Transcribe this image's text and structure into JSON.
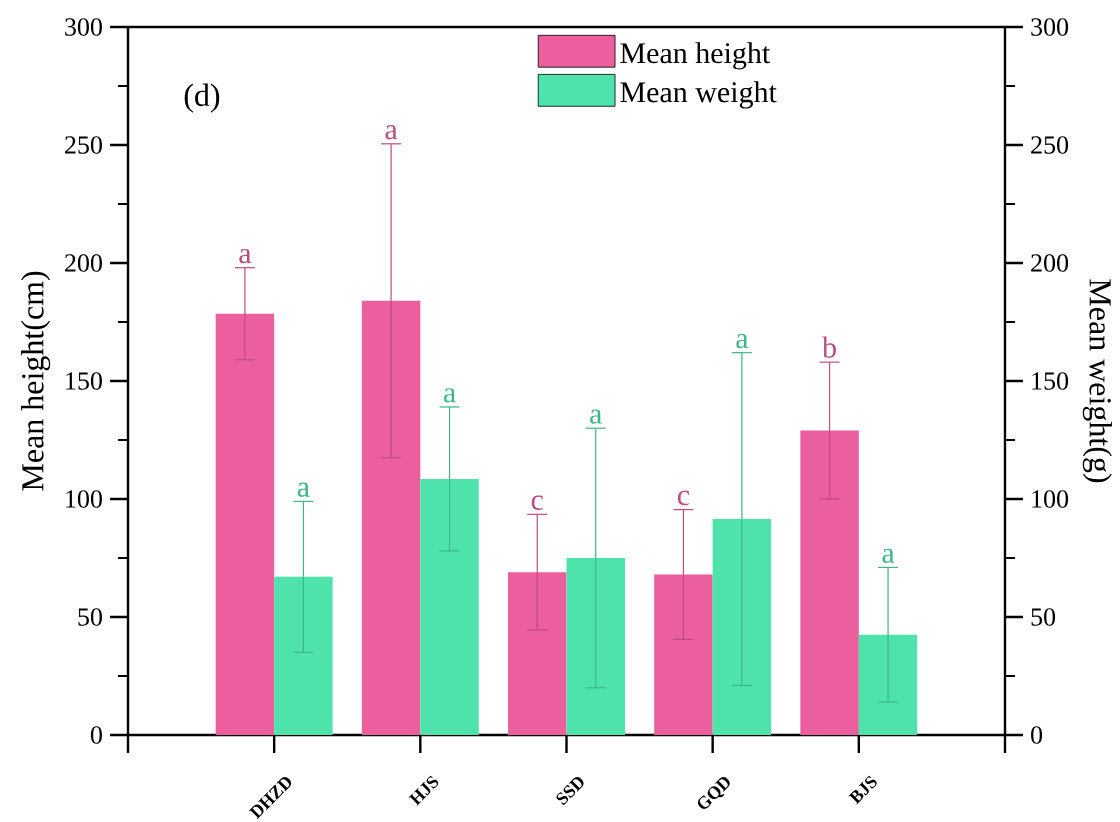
{
  "chart_data": {
    "type": "bar",
    "categories": [
      "DHZD",
      "HJS",
      "SSD",
      "GQD",
      "BJS"
    ],
    "ylabel": "Mean height(cm)",
    "y2label": "Mean weight(g)",
    "ylim": [
      0,
      300
    ],
    "yticks": [
      0,
      50,
      100,
      150,
      200,
      250,
      300
    ],
    "y2lim": [
      0,
      300
    ],
    "y2ticks": [
      0,
      50,
      100,
      150,
      200,
      250,
      300
    ],
    "legend": "top",
    "series": [
      {
        "name": "Mean height",
        "color": "#eb5f9f",
        "values": [
          178.5,
          184,
          69,
          68,
          129
        ],
        "errors": [
          19.5,
          66.5,
          24.5,
          27.5,
          29
        ]
      },
      {
        "name": "Mean weight",
        "color": "#4ee3ab",
        "axis": "y2",
        "values": [
          67,
          108.5,
          75,
          91.5,
          42.5
        ],
        "errors": [
          32,
          30.5,
          55,
          70.5,
          28.5
        ]
      }
    ],
    "annotations": [
      "(d)",
      "a",
      "a",
      "c",
      "c",
      "b",
      "a",
      "a",
      "a",
      "a",
      "a"
    ]
  }
}
